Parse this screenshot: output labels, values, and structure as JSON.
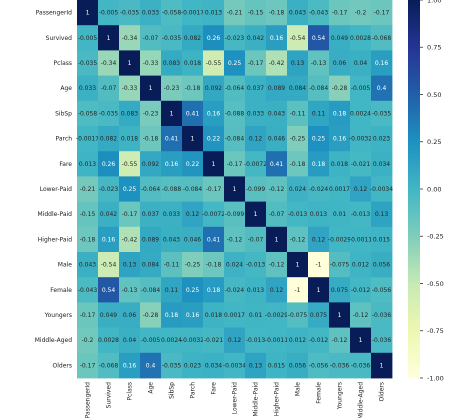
{
  "chart_data": {
    "type": "heatmap",
    "colormap": "YlGnBu",
    "vmin": -1.0,
    "vmax": 1.0,
    "colorbar_ticks": [
      "1.00",
      "0.75",
      "0.50",
      "0.25",
      "0.00",
      "-0.25",
      "-0.50",
      "-0.75",
      "-1.00"
    ],
    "colorbar_tick_values": [
      1.0,
      0.75,
      0.5,
      0.25,
      0.0,
      -0.25,
      -0.5,
      -0.75,
      -1.0
    ],
    "labels": [
      "PassengerId",
      "Survived",
      "Pclass",
      "Age",
      "SibSp",
      "Parch",
      "Fare",
      "Lower-Paid",
      "Middle-Paid",
      "Higher-Paid",
      "Male",
      "Female",
      "Youngers",
      "Middle-Aged",
      "Olders"
    ],
    "values": [
      [
        1,
        -0.005,
        -0.035,
        0.033,
        -0.058,
        -0.0017,
        0.013,
        -0.21,
        -0.15,
        -0.18,
        0.043,
        -0.043,
        -0.17,
        -0.2,
        -0.17
      ],
      [
        -0.005,
        1,
        -0.34,
        -0.07,
        -0.035,
        0.082,
        0.26,
        -0.023,
        0.042,
        0.16,
        -0.54,
        0.54,
        0.049,
        0.0028,
        -0.068
      ],
      [
        -0.035,
        -0.34,
        1,
        -0.33,
        0.083,
        0.018,
        -0.55,
        0.25,
        -0.17,
        -0.42,
        0.13,
        -0.13,
        0.06,
        0.04,
        0.16
      ],
      [
        0.033,
        -0.07,
        -0.33,
        1,
        -0.23,
        -0.18,
        0.092,
        -0.064,
        0.037,
        0.089,
        0.084,
        -0.084,
        -0.28,
        -0.005,
        0.4
      ],
      [
        -0.058,
        -0.035,
        0.083,
        -0.23,
        1,
        0.41,
        0.16,
        -0.088,
        0.033,
        0.043,
        -0.11,
        0.11,
        0.18,
        0.0024,
        -0.035
      ],
      [
        -0.0017,
        0.082,
        0.018,
        -0.18,
        0.41,
        1,
        0.22,
        -0.084,
        0.12,
        0.046,
        -0.25,
        0.25,
        0.16,
        -0.0032,
        0.023
      ],
      [
        0.013,
        0.26,
        -0.55,
        0.092,
        0.16,
        0.22,
        1,
        -0.17,
        -0.0072,
        0.41,
        -0.18,
        0.18,
        0.018,
        -0.021,
        0.034
      ],
      [
        -0.21,
        -0.023,
        0.25,
        -0.064,
        -0.088,
        -0.084,
        -0.17,
        1,
        -0.099,
        -0.12,
        0.024,
        -0.024,
        0.0017,
        0.12,
        -0.0034
      ],
      [
        -0.15,
        0.042,
        -0.17,
        0.037,
        0.033,
        0.12,
        -0.0072,
        -0.099,
        1,
        -0.07,
        -0.013,
        0.013,
        0.01,
        -0.013,
        0.13
      ],
      [
        -0.18,
        0.16,
        -0.42,
        0.089,
        0.043,
        0.046,
        0.41,
        -0.12,
        -0.07,
        1,
        -0.12,
        0.12,
        -0.0029,
        -0.0011,
        0.015
      ],
      [
        0.043,
        -0.54,
        0.13,
        0.084,
        -0.11,
        -0.25,
        -0.18,
        0.024,
        -0.013,
        -0.12,
        1,
        -1,
        -0.075,
        0.012,
        0.056
      ],
      [
        -0.043,
        0.54,
        -0.13,
        -0.084,
        0.11,
        0.25,
        0.18,
        -0.024,
        0.013,
        0.12,
        -1,
        1,
        0.075,
        -0.012,
        -0.056
      ],
      [
        -0.17,
        0.049,
        0.06,
        -0.28,
        0.18,
        0.16,
        0.018,
        0.0017,
        0.01,
        -0.0029,
        -0.075,
        0.075,
        1,
        -0.12,
        -0.036
      ],
      [
        -0.2,
        0.0028,
        0.04,
        -0.005,
        0.0024,
        -0.0032,
        -0.021,
        0.12,
        -0.013,
        -0.0011,
        0.012,
        -0.012,
        -0.12,
        1,
        -0.036
      ],
      [
        -0.17,
        -0.068,
        0.16,
        0.4,
        -0.035,
        0.023,
        0.034,
        -0.0034,
        0.13,
        0.015,
        0.056,
        -0.056,
        -0.036,
        -0.036,
        1
      ]
    ],
    "cell_text": [
      [
        "1",
        "-0.005",
        "-0.035",
        "0.033",
        "-0.058",
        "-0.0017",
        "0.013",
        "-0.21",
        "-0.15",
        "-0.18",
        "0.043",
        "-0.043",
        "-0.17",
        "-0.2",
        "-0.17"
      ],
      [
        "-0.005",
        "1",
        "-0.34",
        "-0.07",
        "-0.035",
        "0.082",
        "0.26",
        "-0.023",
        "0.042",
        "0.16",
        "-0.54",
        "0.54",
        "0.049",
        "0.0028",
        "-0.068"
      ],
      [
        "-0.035",
        "-0.34",
        "1",
        "-0.33",
        "0.083",
        "0.018",
        "-0.55",
        "0.25",
        "-0.17",
        "-0.42",
        "0.13",
        "-0.13",
        "0.06",
        "0.04",
        "0.16"
      ],
      [
        "0.033",
        "-0.07",
        "-0.33",
        "1",
        "-0.23",
        "-0.18",
        "0.092",
        "-0.064",
        "0.037",
        "0.089",
        "0.084",
        "-0.084",
        "-0.28",
        "-0.005",
        "0.4"
      ],
      [
        "-0.058",
        "-0.035",
        "0.083",
        "-0.23",
        "1",
        "0.41",
        "0.16",
        "-0.088",
        "0.033",
        "0.043",
        "-0.11",
        "0.11",
        "0.18",
        "0.0024",
        "-0.035"
      ],
      [
        "-0.0017",
        "0.082",
        "0.018",
        "-0.18",
        "0.41",
        "1",
        "0.22",
        "-0.084",
        "0.12",
        "0.046",
        "-0.25",
        "0.25",
        "0.16",
        "-0.0032",
        "0.023"
      ],
      [
        "0.013",
        "0.26",
        "-0.55",
        "0.092",
        "0.16",
        "0.22",
        "1",
        "-0.17",
        "-0.0072",
        "0.41",
        "-0.18",
        "0.18",
        "0.018",
        "-0.021",
        "0.034"
      ],
      [
        "-0.21",
        "-0.023",
        "0.25",
        "-0.064",
        "-0.088",
        "-0.084",
        "-0.17",
        "1",
        "-0.099",
        "-0.12",
        "0.024",
        "-0.024",
        "0.0017",
        "0.12",
        "-0.0034"
      ],
      [
        "-0.15",
        "0.042",
        "-0.17",
        "0.037",
        "0.033",
        "0.12",
        "-0.0072",
        "-0.099",
        "1",
        "-0.07",
        "-0.013",
        "0.013",
        "0.01",
        "-0.013",
        "0.13"
      ],
      [
        "-0.18",
        "0.16",
        "-0.42",
        "0.089",
        "0.043",
        "0.046",
        "0.41",
        "-0.12",
        "-0.07",
        "1",
        "-0.12",
        "0.12",
        "-0.0029",
        "-0.0011",
        "0.015"
      ],
      [
        "0.043",
        "-0.54",
        "0.13",
        "0.084",
        "-0.11",
        "-0.25",
        "-0.18",
        "0.024",
        "-0.013",
        "-0.12",
        "1",
        "-1",
        "-0.075",
        "0.012",
        "0.056"
      ],
      [
        "-0.043",
        "0.54",
        "-0.13",
        "-0.084",
        "0.11",
        "0.25",
        "0.18",
        "-0.024",
        "0.013",
        "0.12",
        "-1",
        "1",
        "0.075",
        "-0.012",
        "-0.056"
      ],
      [
        "-0.17",
        "0.049",
        "0.06",
        "-0.28",
        "0.18",
        "0.16",
        "0.018",
        "0.0017",
        "0.01",
        "-0.0029",
        "-0.075",
        "0.075",
        "1",
        "-0.12",
        "-0.036"
      ],
      [
        "-0.2",
        "0.0028",
        "0.04",
        "-0.005",
        "0.0024",
        "-0.0032",
        "-0.021",
        "0.12",
        "-0.013",
        "-0.0011",
        "0.012",
        "-0.012",
        "-0.12",
        "1",
        "-0.036"
      ],
      [
        "-0.17",
        "-0.068",
        "0.16",
        "0.4",
        "-0.035",
        "0.023",
        "0.034",
        "-0.0034",
        "0.13",
        "0.015",
        "0.056",
        "-0.056",
        "-0.036",
        "-0.036",
        "1"
      ]
    ]
  }
}
